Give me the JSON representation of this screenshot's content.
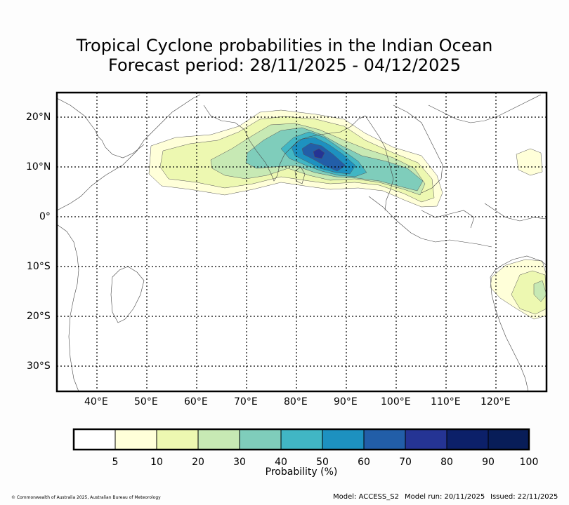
{
  "title": {
    "line1": "Tropical Cyclone probabilities in the Indian Ocean",
    "line2": "Forecast period: 28/11/2025 - 04/12/2025"
  },
  "map": {
    "lon_ticks": [
      "40°E",
      "50°E",
      "60°E",
      "70°E",
      "80°E",
      "90°E",
      "100°E",
      "110°E",
      "120°E"
    ],
    "lon_values": [
      40,
      50,
      60,
      70,
      80,
      90,
      100,
      110,
      120
    ],
    "lat_ticks": [
      "20°N",
      "10°N",
      "0°",
      "10°S",
      "20°S",
      "30°S"
    ],
    "lat_values": [
      20,
      10,
      0,
      -10,
      -20,
      -30
    ],
    "extent": {
      "lon": [
        32,
        130
      ],
      "lat": [
        -35,
        25
      ]
    }
  },
  "colorbar": {
    "title": "Probability (%)",
    "ticks": [
      "5",
      "10",
      "20",
      "30",
      "40",
      "50",
      "60",
      "70",
      "80",
      "90",
      "100"
    ],
    "colors": [
      "#ffffff",
      "#ffffd9",
      "#edf8b1",
      "#c7e9b4",
      "#7fcdbb",
      "#41b6c4",
      "#1d91c0",
      "#225ea8",
      "#253494",
      "#0c2069",
      "#081d58"
    ]
  },
  "footer": {
    "copyright": "© Commonwealth of Australia 2025, Australian Bureau of Meteorology",
    "model": "Model: ACCESS_S2",
    "model_run": "Model run: 20/11/2025",
    "issued": "Issued: 22/11/2025"
  }
}
